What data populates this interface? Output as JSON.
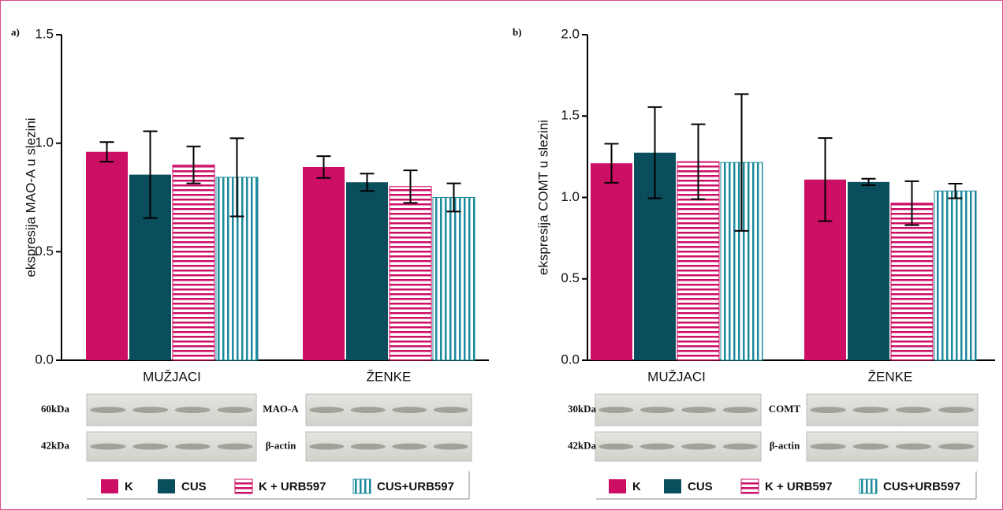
{
  "chart_data": [
    {
      "type": "bar",
      "panel_label": "a)",
      "y_label": "ekspresija MAO-A u slezini",
      "categories": [
        "MUŽJACI",
        "ŽENKE"
      ],
      "ylim": [
        0,
        1.5
      ],
      "yticks": [
        {
          "value": 0,
          "label": "0.0"
        },
        0.5,
        {
          "value": 1,
          "label": "1.0"
        },
        1.5
      ],
      "series": [
        {
          "name": "K",
          "color": "#cc0e65",
          "fill": "solid",
          "values": [
            0.96,
            0.89
          ],
          "errors": [
            0.045,
            0.05
          ]
        },
        {
          "name": "CUS",
          "color": "#0a4d5c",
          "fill": "solid",
          "values": [
            0.855,
            0.82
          ],
          "errors": [
            0.2,
            0.04
          ]
        },
        {
          "name": "K + URB597",
          "color": "#cc0e65",
          "fill": "horizontal",
          "values": [
            0.9,
            0.8
          ],
          "errors": [
            0.085,
            0.075
          ]
        },
        {
          "name": "CUS+URB597",
          "color": "#1b8a9c",
          "fill": "vertical",
          "values": [
            0.843,
            0.75
          ],
          "errors": [
            0.18,
            0.065
          ]
        }
      ],
      "blot_labels": {
        "target": {
          "size": "60kDa",
          "name": "MAO-A"
        },
        "control": {
          "size": "42kDa",
          "name": "β-actin"
        }
      }
    },
    {
      "type": "bar",
      "panel_label": "b)",
      "y_label": "ekspresija COMT u slezini",
      "categories": [
        "MUŽJACI",
        "ŽENKE"
      ],
      "ylim": [
        0,
        2
      ],
      "yticks": [
        {
          "value": 0,
          "label": "0.0"
        },
        0.5,
        {
          "value": 1,
          "label": "1.0"
        },
        1.5,
        {
          "value": 2,
          "label": "2.0"
        }
      ],
      "series": [
        {
          "name": "K",
          "color": "#cc0e65",
          "fill": "solid",
          "values": [
            1.21,
            1.11
          ],
          "errors": [
            0.12,
            0.255
          ]
        },
        {
          "name": "CUS",
          "color": "#0a4d5c",
          "fill": "solid",
          "values": [
            1.275,
            1.095
          ],
          "errors": [
            0.28,
            0.02
          ]
        },
        {
          "name": "K + URB597",
          "color": "#cc0e65",
          "fill": "horizontal",
          "values": [
            1.22,
            0.965
          ],
          "errors": [
            0.23,
            0.135
          ]
        },
        {
          "name": "CUS+URB597",
          "color": "#1b8a9c",
          "fill": "vertical",
          "values": [
            1.215,
            1.04
          ],
          "errors": [
            0.42,
            0.045
          ]
        }
      ],
      "blot_labels": {
        "target": {
          "size": "30kDa",
          "name": "COMT"
        },
        "control": {
          "size": "42kDa",
          "name": "β-actin"
        }
      }
    }
  ]
}
